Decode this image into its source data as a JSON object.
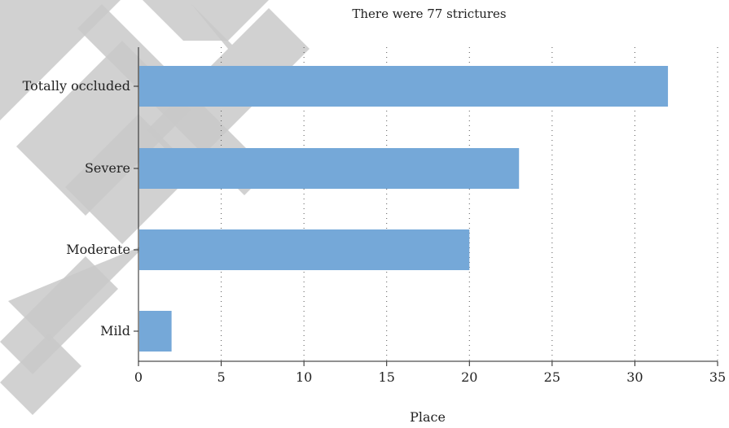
{
  "chart_data": {
    "type": "bar",
    "orientation": "horizontal",
    "title": "There were 77 strictures",
    "xlabel": "Place",
    "ylabel": "",
    "categories": [
      "Totally occluded",
      "Severe",
      "Moderate",
      "Mild"
    ],
    "values": [
      32,
      23,
      20,
      2
    ],
    "xlim": [
      0,
      35
    ],
    "xticks": [
      0,
      5,
      10,
      15,
      20,
      25,
      30,
      35
    ],
    "grid": "vertical dotted",
    "bar_color": "#75a8d8"
  },
  "watermark": {
    "text": "DRAFT",
    "color": "#c9c9c9"
  }
}
